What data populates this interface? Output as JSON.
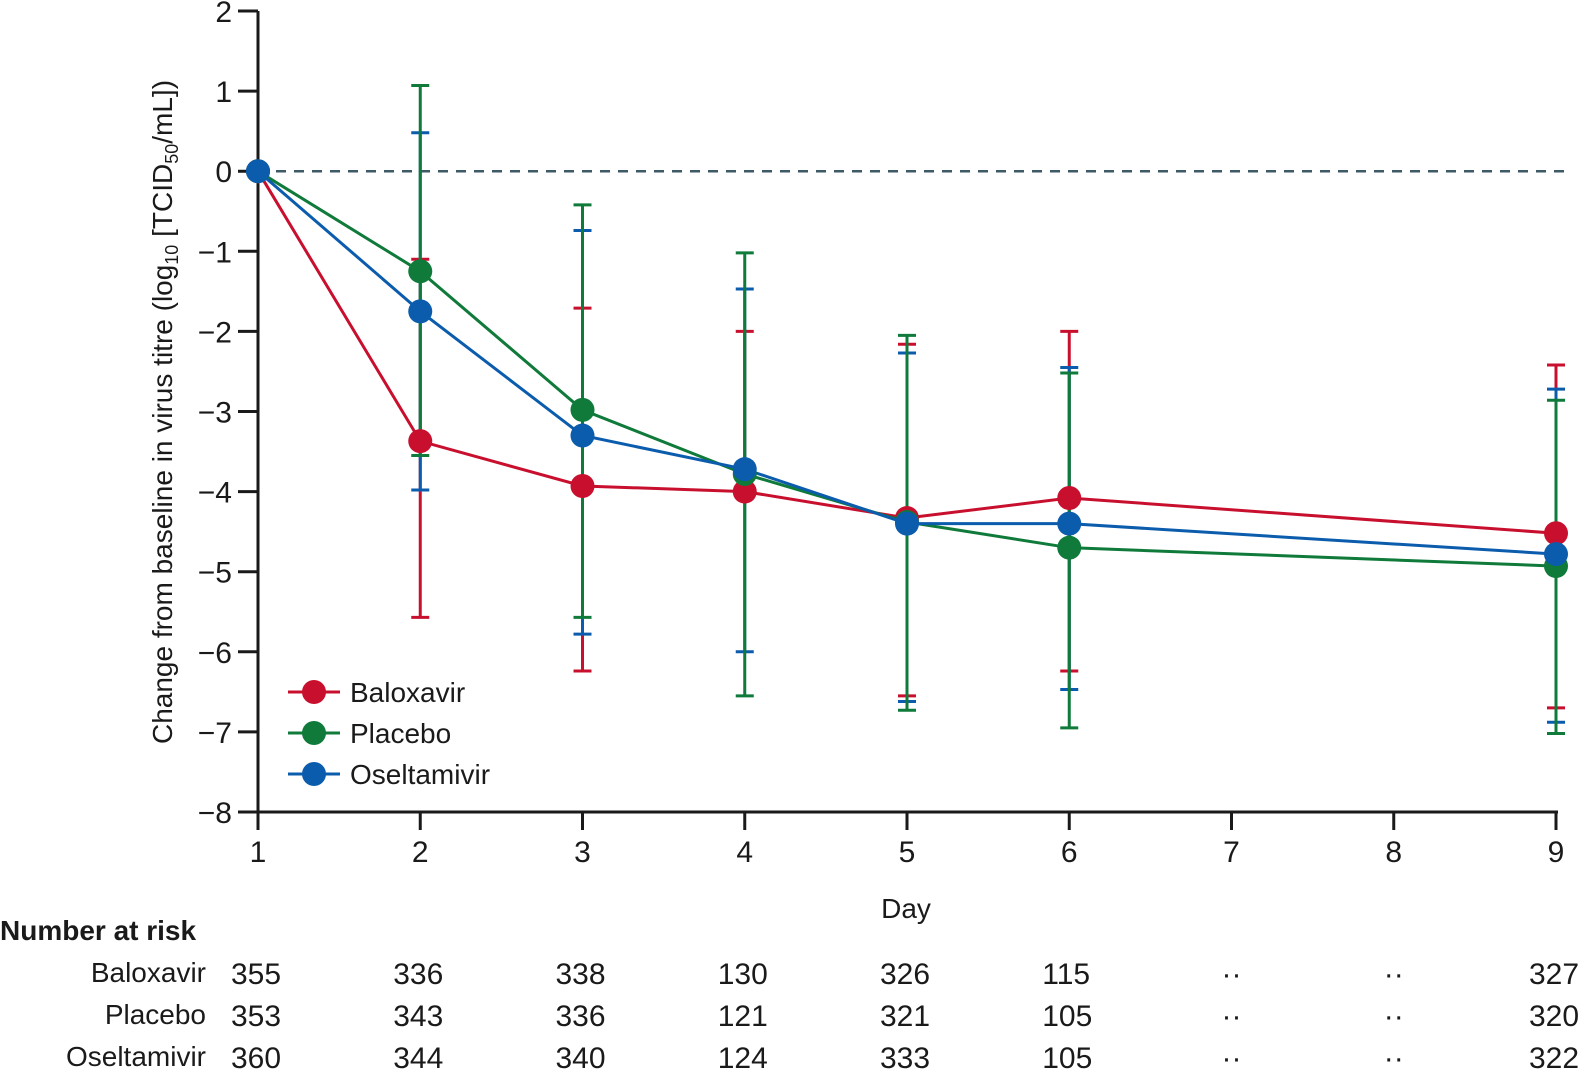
{
  "chart_data": {
    "type": "line",
    "title": "",
    "xlabel": "Day",
    "ylabel": "Change from baseline in virus titre (log10 [TCID50/mL])",
    "ylabel_parts": {
      "pre": "Change from baseline in virus titre (log",
      "sub1": "10",
      "mid": " [TCID",
      "sub2": "50",
      "post": "/mL])"
    },
    "xlim": [
      1,
      9
    ],
    "ylim": [
      -8,
      2
    ],
    "xticks": [
      1,
      2,
      3,
      4,
      5,
      6,
      7,
      8,
      9
    ],
    "yticks": [
      2,
      1,
      0,
      -1,
      -2,
      -3,
      -4,
      -5,
      -6,
      -7,
      -8
    ],
    "ytick_labels": [
      "2",
      "1",
      "0",
      "−1",
      "−2",
      "−3",
      "−4",
      "−5",
      "−6",
      "−7",
      "−8"
    ],
    "reference_line": {
      "y": 0,
      "style": "dashed",
      "color": "#3d5a66"
    },
    "grid": false,
    "legend_position": "bottom-left",
    "series": [
      {
        "name": "Baloxavir",
        "color": "#c8102e",
        "x": [
          1,
          2,
          3,
          4,
          5,
          6,
          9
        ],
        "y": [
          0,
          -3.37,
          -3.93,
          -4.0,
          -4.33,
          -4.08,
          -4.52
        ],
        "upper": [
          null,
          -1.1,
          -1.71,
          -2.0,
          -2.16,
          -2.0,
          -2.42
        ],
        "lower": [
          null,
          -5.57,
          -6.24,
          null,
          -6.55,
          -6.24,
          -6.7
        ]
      },
      {
        "name": "Placebo",
        "color": "#0f7a3a",
        "x": [
          1,
          2,
          3,
          4,
          5,
          6,
          9
        ],
        "y": [
          0,
          -1.25,
          -2.98,
          -3.78,
          -4.38,
          -4.7,
          -4.93
        ],
        "upper": [
          null,
          1.07,
          -0.42,
          -1.02,
          -2.05,
          -2.52,
          -2.86
        ],
        "lower": [
          null,
          -3.55,
          -5.57,
          -6.55,
          -6.73,
          -6.95,
          -7.02
        ]
      },
      {
        "name": "Oseltamivir",
        "color": "#0b5cad",
        "x": [
          1,
          2,
          3,
          4,
          5,
          6,
          9
        ],
        "y": [
          0,
          -1.75,
          -3.3,
          -3.72,
          -4.4,
          -4.4,
          -4.78
        ],
        "upper": [
          null,
          0.48,
          -0.74,
          -1.47,
          -2.27,
          -2.45,
          -2.72
        ],
        "lower": [
          null,
          -3.98,
          -5.78,
          -6.0,
          -6.62,
          -6.47,
          -6.88
        ]
      }
    ],
    "number_at_risk": {
      "title": "Number at risk",
      "days": [
        1,
        2,
        3,
        4,
        5,
        6,
        7,
        8,
        9
      ],
      "rows": [
        {
          "label": "Baloxavir",
          "values": [
            "355",
            "336",
            "338",
            "130",
            "326",
            "115",
            "··",
            "··",
            "327"
          ]
        },
        {
          "label": "Placebo",
          "values": [
            "353",
            "343",
            "336",
            "121",
            "321",
            "105",
            "··",
            "··",
            "320"
          ]
        },
        {
          "label": "Oseltamivir",
          "values": [
            "360",
            "344",
            "340",
            "124",
            "333",
            "105",
            "··",
            "··",
            "322"
          ]
        }
      ]
    }
  }
}
